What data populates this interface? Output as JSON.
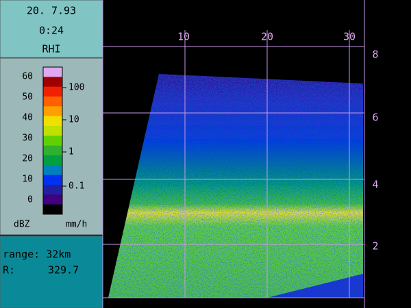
{
  "header": {
    "date": "20. 7.93",
    "time": "0:24",
    "mode": "RHI"
  },
  "scale": {
    "dbz_labels": [
      "60",
      "50",
      "40",
      "30",
      "20",
      "10",
      "0"
    ],
    "rain_labels": [
      "100",
      "10",
      "1",
      "0.1"
    ],
    "dbz_unit": "dBZ",
    "rain_unit": "mm/h"
  },
  "info": {
    "range": "range: 32km",
    "azimuth_label": "R:",
    "azimuth": "329.7"
  },
  "axes": {
    "range_labels": [
      "10",
      "20",
      "30"
    ],
    "height_labels": [
      "8",
      "6",
      "4",
      "2"
    ]
  }
}
